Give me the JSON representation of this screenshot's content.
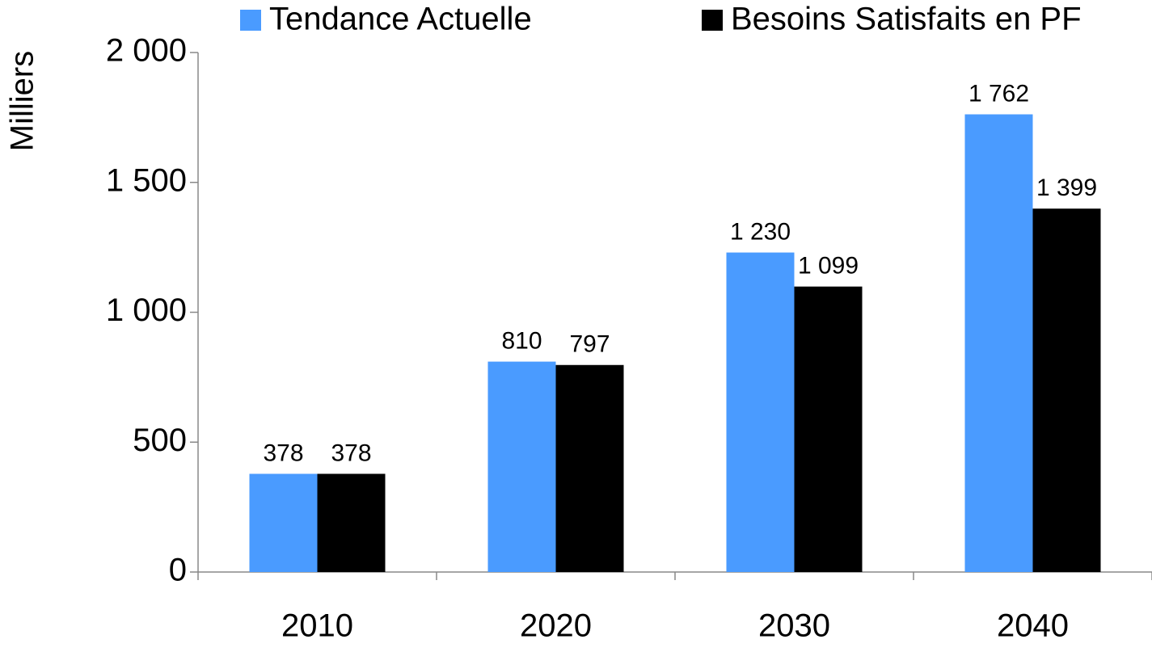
{
  "chart_data": {
    "type": "bar",
    "y_axis_label": "Milliers",
    "categories": [
      "2010",
      "2020",
      "2030",
      "2040"
    ],
    "series": [
      {
        "name": "Tendance Actuelle",
        "color": "#4a9bff",
        "values": [
          378,
          810,
          1230,
          1762
        ],
        "value_labels": [
          "378",
          "810",
          "1 230",
          "1 762"
        ]
      },
      {
        "name": "Besoins Satisfaits en PF",
        "color": "#000000",
        "values": [
          378,
          797,
          1099,
          1399
        ],
        "value_labels": [
          "378",
          "797",
          "1 099",
          "1 399"
        ]
      }
    ],
    "ylim": [
      0,
      2000
    ],
    "yticks": [
      0,
      500,
      {
        "value": 1000,
        "label": "1 000"
      },
      {
        "value": 1500,
        "label": "1 500"
      },
      {
        "value": 2000,
        "label": "2 000"
      }
    ],
    "legend": "top"
  }
}
